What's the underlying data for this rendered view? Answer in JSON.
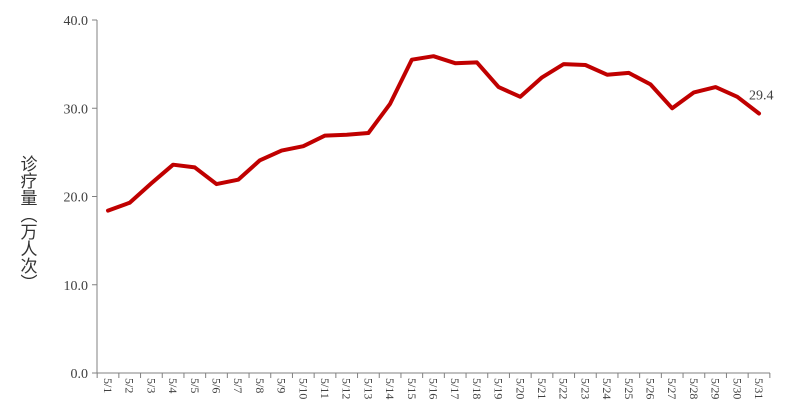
{
  "chart_data": {
    "type": "line",
    "title": "",
    "xlabel": "",
    "ylabel": "诊疗量（万人次）",
    "ylim": [
      0,
      40
    ],
    "yticks": [
      "0.0",
      "10.0",
      "20.0",
      "30.0",
      "40.0"
    ],
    "grid": false,
    "line_color": "#C00000",
    "categories": [
      "5/1",
      "5/2",
      "5/3",
      "5/4",
      "5/5",
      "5/6",
      "5/7",
      "5/8",
      "5/9",
      "5/10",
      "5/11",
      "5/12",
      "5/13",
      "5/14",
      "5/15",
      "5/16",
      "5/17",
      "5/18",
      "5/19",
      "5/20",
      "5/21",
      "5/22",
      "5/23",
      "5/24",
      "5/25",
      "5/26",
      "5/27",
      "5/28",
      "5/29",
      "5/30",
      "5/31"
    ],
    "values": [
      18.4,
      19.3,
      21.5,
      23.6,
      23.3,
      21.4,
      21.9,
      24.1,
      25.2,
      25.7,
      26.9,
      27.0,
      27.2,
      30.5,
      35.5,
      35.9,
      35.1,
      35.2,
      32.4,
      31.3,
      33.5,
      35.0,
      34.9,
      33.8,
      34.0,
      32.7,
      30.0,
      31.8,
      32.4,
      31.3,
      29.4
    ],
    "annotation": "29.4"
  }
}
